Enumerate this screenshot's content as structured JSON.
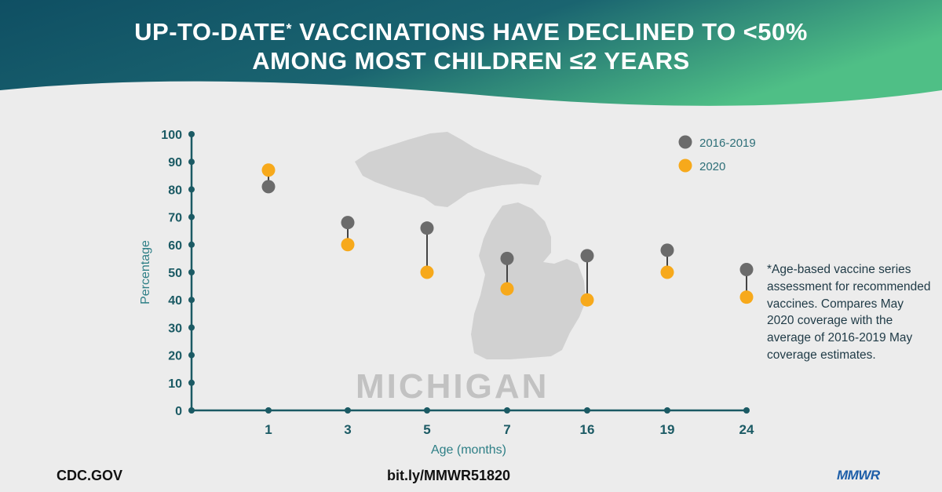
{
  "header": {
    "title_part1": "UP-TO-DATE",
    "title_mark": "*",
    "title_part2": " VACCINATIONS HAVE DECLINED TO <50%",
    "title_line2": "AMONG MOST CHILDREN ≤2 YEARS"
  },
  "watermark": {
    "text": "MICHIGAN"
  },
  "footnote": "*Age-based vaccine series assessment for recommended vaccines. Compares May 2020 coverage with the average of 2016-2019 May coverage estimates.",
  "footer": {
    "left": "CDC.GOV",
    "center": "bit.ly/MMWR51820",
    "right": "MMWR"
  },
  "colors": {
    "header": "#1b5f6e",
    "axis": "#1b5a64",
    "series_2016_2019": "#6b6b6b",
    "series_2020": "#f7a91b",
    "connector": "#444444"
  },
  "chart_data": {
    "type": "scatter",
    "xlabel": "Age (months)",
    "ylabel": "Percentage",
    "ylim": [
      0,
      100
    ],
    "yticks": [
      0,
      10,
      20,
      30,
      40,
      50,
      60,
      70,
      80,
      90,
      100
    ],
    "categories": [
      "1",
      "3",
      "5",
      "7",
      "16",
      "19",
      "24"
    ],
    "series": [
      {
        "name": "2016-2019",
        "values": [
          81,
          68,
          66,
          55,
          56,
          58,
          51
        ]
      },
      {
        "name": "2020",
        "values": [
          87,
          60,
          50,
          44,
          40,
          50,
          41
        ]
      }
    ],
    "legend": "top-right",
    "grid": false
  }
}
